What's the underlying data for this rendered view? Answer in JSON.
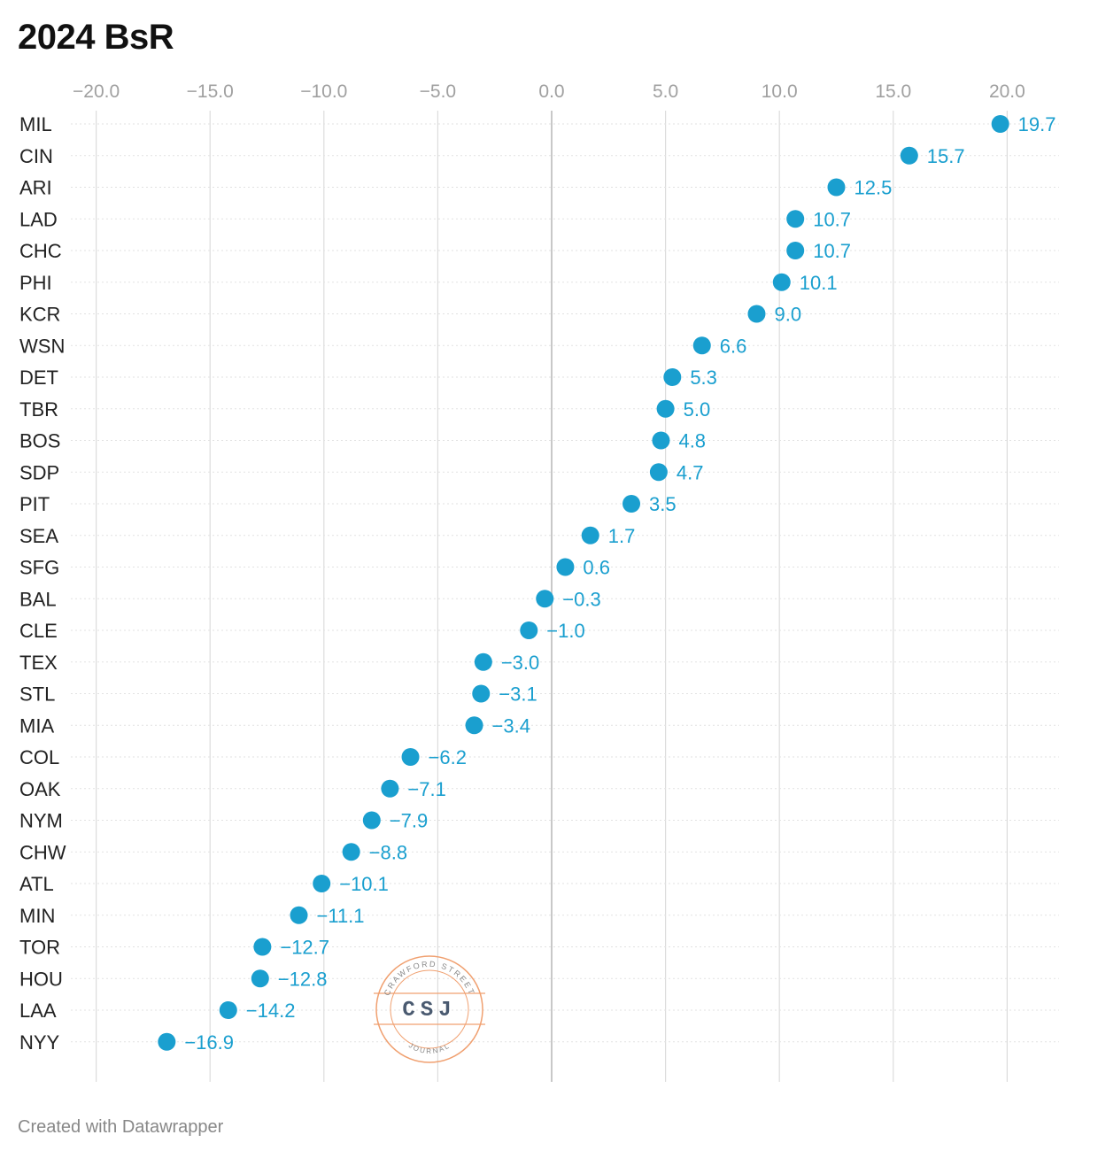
{
  "title": "2024 BsR",
  "footer": "Created with Datawrapper",
  "watermark": {
    "arc_top": "CRAWFORD STREET",
    "monogram": "CSJ",
    "arc_bottom": "JOURNAL",
    "color": "#f0a070"
  },
  "colors": {
    "dot": "#1a9fcf",
    "label": "#1a9fcf",
    "grid": "#dcdcdc",
    "zero": "#c8c8c8",
    "row_line": "#e2e2e2"
  },
  "chart_data": {
    "type": "scatter",
    "title": "2024 BsR",
    "xlim": [
      -21,
      22.5
    ],
    "x_ticks": [
      -20,
      -15,
      -10,
      -5,
      0,
      5,
      10,
      15,
      20
    ],
    "x_tick_labels": [
      "−20.0",
      "−15.0",
      "−10.0",
      "−5.0",
      "0.0",
      "5.0",
      "10.0",
      "15.0",
      "20.0"
    ],
    "grid": true,
    "categories": [
      "MIL",
      "CIN",
      "ARI",
      "LAD",
      "CHC",
      "PHI",
      "KCR",
      "WSN",
      "DET",
      "TBR",
      "BOS",
      "SDP",
      "PIT",
      "SEA",
      "SFG",
      "BAL",
      "CLE",
      "TEX",
      "STL",
      "MIA",
      "COL",
      "OAK",
      "NYM",
      "CHW",
      "ATL",
      "MIN",
      "TOR",
      "HOU",
      "LAA",
      "NYY"
    ],
    "values": [
      19.7,
      15.7,
      12.5,
      10.7,
      10.7,
      10.1,
      9.0,
      6.6,
      5.3,
      5.0,
      4.8,
      4.7,
      3.5,
      1.7,
      0.6,
      -0.3,
      -1.0,
      -3.0,
      -3.1,
      -3.4,
      -6.2,
      -7.1,
      -7.9,
      -8.8,
      -10.1,
      -11.1,
      -12.7,
      -12.8,
      -14.2,
      -16.9
    ],
    "value_labels": [
      "19.7",
      "15.7",
      "12.5",
      "10.7",
      "10.7",
      "10.1",
      "9.0",
      "6.6",
      "5.3",
      "5.0",
      "4.8",
      "4.7",
      "3.5",
      "1.7",
      "0.6",
      "−0.3",
      "−1.0",
      "−3.0",
      "−3.1",
      "−3.4",
      "−6.2",
      "−7.1",
      "−7.9",
      "−8.8",
      "−10.1",
      "−11.1",
      "−12.7",
      "−12.8",
      "−14.2",
      "−16.9"
    ]
  }
}
